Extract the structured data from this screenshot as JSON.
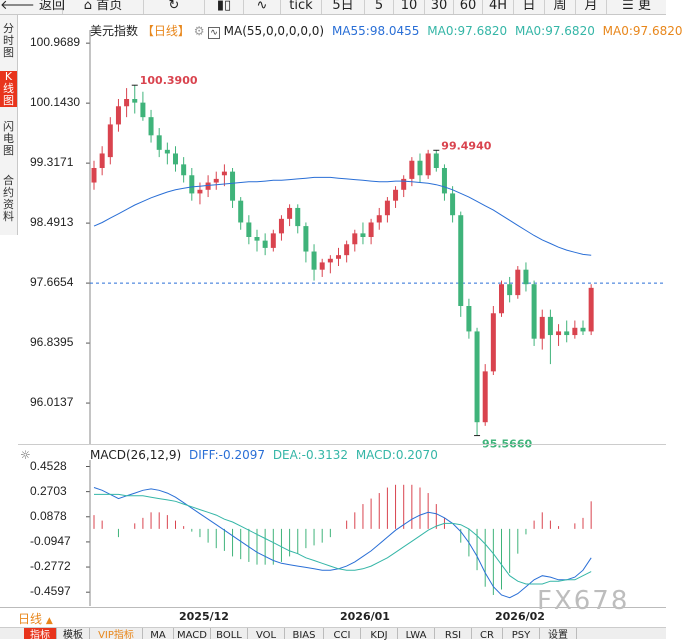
{
  "toolbar": {
    "back": "返回",
    "home": "首页",
    "refresh_icon": "refresh-icon",
    "tick": "tick",
    "periods": [
      "5日",
      "5",
      "10",
      "30",
      "60",
      "4H",
      "日",
      "周",
      "月"
    ],
    "more": "更"
  },
  "sidebar": [
    {
      "label": "分时图"
    },
    {
      "label": "K线图",
      "active": true
    },
    {
      "label": "闪电图"
    },
    {
      "label": "合约资料"
    }
  ],
  "main_legend": {
    "name": "美元指数",
    "period": "【日线】",
    "ma_params": "MA(55,0,0,0,0,0)",
    "ma55": "MA55:98.0455",
    "ma0a": "MA0:97.6820",
    "ma0b": "MA0:97.6820",
    "ma0c": "MA0:97.6820"
  },
  "macd_legend": {
    "params": "MACD(26,12,9)",
    "diff": "DIFF:-0.2097",
    "dea": "DEA:-0.3132",
    "macd": "MACD:0.2070"
  },
  "date_axis": {
    "period_label": "日线",
    "ticks": [
      "2025/12",
      "2026/01",
      "2026/02"
    ]
  },
  "bottom_tabs": [
    "指标",
    "模板",
    "VIP指标",
    "MA",
    "MACD",
    "BOLL",
    "VOL",
    "BIAS",
    "CCI",
    "KDJ",
    "LWA",
    "RSI",
    "CR",
    "PSY",
    "设置"
  ],
  "watermark": "FX678",
  "colors": {
    "up": "#d9434e",
    "down": "#3fb37a",
    "ma": "#2a6fd6",
    "diff": "#2a6fd6",
    "dea": "#35b6a7",
    "price_line": "#2a6fd6"
  },
  "chart_data": [
    {
      "type": "candlestick",
      "title": "美元指数",
      "y_ticks": [
        "100.9689",
        "100.1430",
        "99.3171",
        "98.4913",
        "97.6654",
        "96.8395",
        "96.0137"
      ],
      "ylim": [
        95.45,
        101.15
      ],
      "current_price": 97.6654,
      "annotations": [
        {
          "text": "100.3900",
          "value": 100.39,
          "kind": "high"
        },
        {
          "text": "99.4940",
          "value": 99.494,
          "kind": "high"
        },
        {
          "text": "95.5660",
          "value": 95.566,
          "kind": "low"
        }
      ],
      "ohlc": [
        [
          99.05,
          99.35,
          98.95,
          99.25
        ],
        [
          99.25,
          99.55,
          99.15,
          99.45
        ],
        [
          99.4,
          99.95,
          99.3,
          99.85
        ],
        [
          99.85,
          100.2,
          99.75,
          100.1
        ],
        [
          100.1,
          100.35,
          99.95,
          100.2
        ],
        [
          100.2,
          100.39,
          100.0,
          100.15
        ],
        [
          100.15,
          100.3,
          99.9,
          99.95
        ],
        [
          99.95,
          100.05,
          99.6,
          99.7
        ],
        [
          99.7,
          99.8,
          99.4,
          99.5
        ],
        [
          99.5,
          99.6,
          99.3,
          99.45
        ],
        [
          99.45,
          99.55,
          99.2,
          99.3
        ],
        [
          99.3,
          99.4,
          99.05,
          99.15
        ],
        [
          99.15,
          99.25,
          98.8,
          98.9
        ],
        [
          98.9,
          99.05,
          98.75,
          98.95
        ],
        [
          98.95,
          99.15,
          98.85,
          99.05
        ],
        [
          99.05,
          99.2,
          98.95,
          99.1
        ],
        [
          99.15,
          99.3,
          99.0,
          99.2
        ],
        [
          99.2,
          99.25,
          98.7,
          98.8
        ],
        [
          98.8,
          98.85,
          98.4,
          98.5
        ],
        [
          98.5,
          98.6,
          98.2,
          98.3
        ],
        [
          98.3,
          98.4,
          98.1,
          98.25
        ],
        [
          98.25,
          98.35,
          98.05,
          98.15
        ],
        [
          98.15,
          98.4,
          98.1,
          98.35
        ],
        [
          98.35,
          98.6,
          98.25,
          98.55
        ],
        [
          98.55,
          98.75,
          98.45,
          98.7
        ],
        [
          98.7,
          98.75,
          98.35,
          98.45
        ],
        [
          98.45,
          98.5,
          97.95,
          98.1
        ],
        [
          98.1,
          98.2,
          97.7,
          97.85
        ],
        [
          97.85,
          98.0,
          97.75,
          97.95
        ],
        [
          97.95,
          98.05,
          97.8,
          98.0
        ],
        [
          98.0,
          98.15,
          97.9,
          98.05
        ],
        [
          98.05,
          98.25,
          97.95,
          98.2
        ],
        [
          98.2,
          98.4,
          98.1,
          98.35
        ],
        [
          98.35,
          98.5,
          98.2,
          98.3
        ],
        [
          98.3,
          98.55,
          98.2,
          98.5
        ],
        [
          98.5,
          98.7,
          98.4,
          98.6
        ],
        [
          98.6,
          98.85,
          98.5,
          98.8
        ],
        [
          98.8,
          99.0,
          98.7,
          98.95
        ],
        [
          98.95,
          99.15,
          98.85,
          99.1
        ],
        [
          99.1,
          99.4,
          99.0,
          99.35
        ],
        [
          99.35,
          99.45,
          99.05,
          99.15
        ],
        [
          99.15,
          99.5,
          99.1,
          99.45
        ],
        [
          99.45,
          99.494,
          99.2,
          99.25
        ],
        [
          99.25,
          99.3,
          98.8,
          98.9
        ],
        [
          98.9,
          99.0,
          98.5,
          98.6
        ],
        [
          98.6,
          98.65,
          97.2,
          97.35
        ],
        [
          97.35,
          97.45,
          96.9,
          97.0
        ],
        [
          97.0,
          97.05,
          95.566,
          95.75
        ],
        [
          95.75,
          96.55,
          95.7,
          96.45
        ],
        [
          96.45,
          97.35,
          96.4,
          97.25
        ],
        [
          97.25,
          97.7,
          97.2,
          97.65
        ],
        [
          97.65,
          97.75,
          97.4,
          97.5
        ],
        [
          97.5,
          97.9,
          97.45,
          97.85
        ],
        [
          97.85,
          97.95,
          97.55,
          97.65
        ],
        [
          97.65,
          97.7,
          96.8,
          96.9
        ],
        [
          96.9,
          97.3,
          96.75,
          97.2
        ],
        [
          97.2,
          97.3,
          96.55,
          96.95
        ],
        [
          96.95,
          97.1,
          96.8,
          97.0
        ],
        [
          97.0,
          97.15,
          96.85,
          96.95
        ],
        [
          96.95,
          97.15,
          96.9,
          97.05
        ],
        [
          97.05,
          97.15,
          96.95,
          97.0
        ],
        [
          97.0,
          97.65,
          96.95,
          97.6
        ]
      ],
      "ma55": [
        98.45,
        98.5,
        98.56,
        98.62,
        98.68,
        98.74,
        98.79,
        98.84,
        98.88,
        98.92,
        98.95,
        98.97,
        98.99,
        99.0,
        99.01,
        99.02,
        99.03,
        99.04,
        99.05,
        99.06,
        99.06,
        99.07,
        99.08,
        99.08,
        99.09,
        99.1,
        99.11,
        99.12,
        99.12,
        99.12,
        99.11,
        99.1,
        99.09,
        99.08,
        99.07,
        99.06,
        99.06,
        99.07,
        99.07,
        99.06,
        99.05,
        99.04,
        99.02,
        98.99,
        98.95,
        98.9,
        98.85,
        98.79,
        98.73,
        98.67,
        98.6,
        98.53,
        98.46,
        98.39,
        98.32,
        98.26,
        98.21,
        98.16,
        98.12,
        98.09,
        98.06,
        98.05
      ]
    },
    {
      "type": "macd",
      "title": "MACD(26,12,9)",
      "y_ticks": [
        "0.4528",
        "0.2703",
        "0.0878",
        "-0.0947",
        "-0.2772",
        "-0.4597"
      ],
      "ylim": [
        -0.56,
        0.5
      ],
      "diff": [
        0.3,
        0.28,
        0.25,
        0.22,
        0.24,
        0.26,
        0.28,
        0.29,
        0.28,
        0.26,
        0.23,
        0.19,
        0.15,
        0.11,
        0.07,
        0.03,
        -0.01,
        -0.05,
        -0.09,
        -0.13,
        -0.17,
        -0.2,
        -0.23,
        -0.25,
        -0.26,
        -0.27,
        -0.28,
        -0.29,
        -0.3,
        -0.3,
        -0.29,
        -0.27,
        -0.24,
        -0.2,
        -0.16,
        -0.11,
        -0.06,
        -0.01,
        0.03,
        0.07,
        0.1,
        0.12,
        0.11,
        0.08,
        0.04,
        -0.02,
        -0.1,
        -0.2,
        -0.32,
        -0.42,
        -0.48,
        -0.5,
        -0.47,
        -0.42,
        -0.37,
        -0.34,
        -0.35,
        -0.37,
        -0.37,
        -0.35,
        -0.3,
        -0.21
      ],
      "dea": [
        0.25,
        0.25,
        0.25,
        0.25,
        0.24,
        0.24,
        0.24,
        0.23,
        0.22,
        0.21,
        0.2,
        0.18,
        0.16,
        0.14,
        0.12,
        0.1,
        0.07,
        0.05,
        0.02,
        -0.01,
        -0.04,
        -0.07,
        -0.1,
        -0.13,
        -0.16,
        -0.18,
        -0.21,
        -0.23,
        -0.25,
        -0.27,
        -0.29,
        -0.3,
        -0.3,
        -0.29,
        -0.27,
        -0.24,
        -0.21,
        -0.17,
        -0.13,
        -0.09,
        -0.05,
        -0.01,
        0.02,
        0.04,
        0.04,
        0.03,
        0.0,
        -0.05,
        -0.11,
        -0.18,
        -0.26,
        -0.34,
        -0.38,
        -0.4,
        -0.4,
        -0.4,
        -0.38,
        -0.38,
        -0.37,
        -0.37,
        -0.34,
        -0.31
      ],
      "macd": [
        0.1,
        0.06,
        0.0,
        -0.06,
        0.0,
        0.04,
        0.08,
        0.12,
        0.12,
        0.1,
        0.06,
        0.02,
        -0.02,
        -0.06,
        -0.1,
        -0.14,
        -0.16,
        -0.2,
        -0.22,
        -0.24,
        -0.26,
        -0.26,
        -0.26,
        -0.24,
        -0.2,
        -0.18,
        -0.14,
        -0.12,
        -0.1,
        -0.06,
        0.0,
        0.06,
        0.12,
        0.18,
        0.22,
        0.26,
        0.3,
        0.32,
        0.32,
        0.32,
        0.3,
        0.26,
        0.18,
        0.08,
        0.0,
        -0.1,
        -0.2,
        -0.3,
        -0.42,
        -0.48,
        -0.44,
        -0.32,
        -0.18,
        -0.04,
        0.06,
        0.12,
        0.06,
        0.02,
        0.0,
        0.04,
        0.08,
        0.2
      ]
    }
  ]
}
